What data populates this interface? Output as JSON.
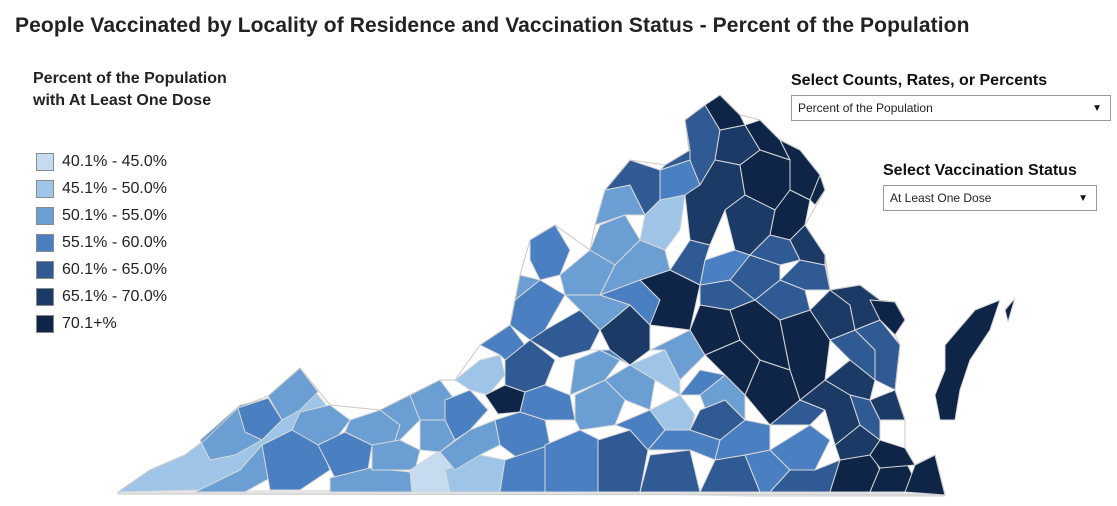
{
  "title": "People Vaccinated by Locality of Residence and Vaccination Status - Percent of the Population",
  "legend": {
    "title_line1": "Percent of the Population",
    "title_line2": "with At Least One Dose",
    "items": [
      {
        "label": "40.1% - 45.0%",
        "color": "#c6dbef"
      },
      {
        "label": "45.1% - 50.0%",
        "color": "#9ec5e8"
      },
      {
        "label": "50.1% - 55.0%",
        "color": "#6b9fd4"
      },
      {
        "label": "55.1% - 60.0%",
        "color": "#4a7fc1"
      },
      {
        "label": "60.1% - 65.0%",
        "color": "#2f5a93"
      },
      {
        "label": "65.1% - 70.0%",
        "color": "#1c3a66"
      },
      {
        "label": "70.1+%",
        "color": "#0f2547"
      }
    ]
  },
  "controls": {
    "measure": {
      "label": "Select Counts, Rates, or Percents",
      "value": "Percent of the Population"
    },
    "status": {
      "label": "Select Vaccination Status",
      "value": "At Least One Dose"
    }
  },
  "map": {
    "region": "Virginia",
    "border_color": "#d8d8d8"
  }
}
